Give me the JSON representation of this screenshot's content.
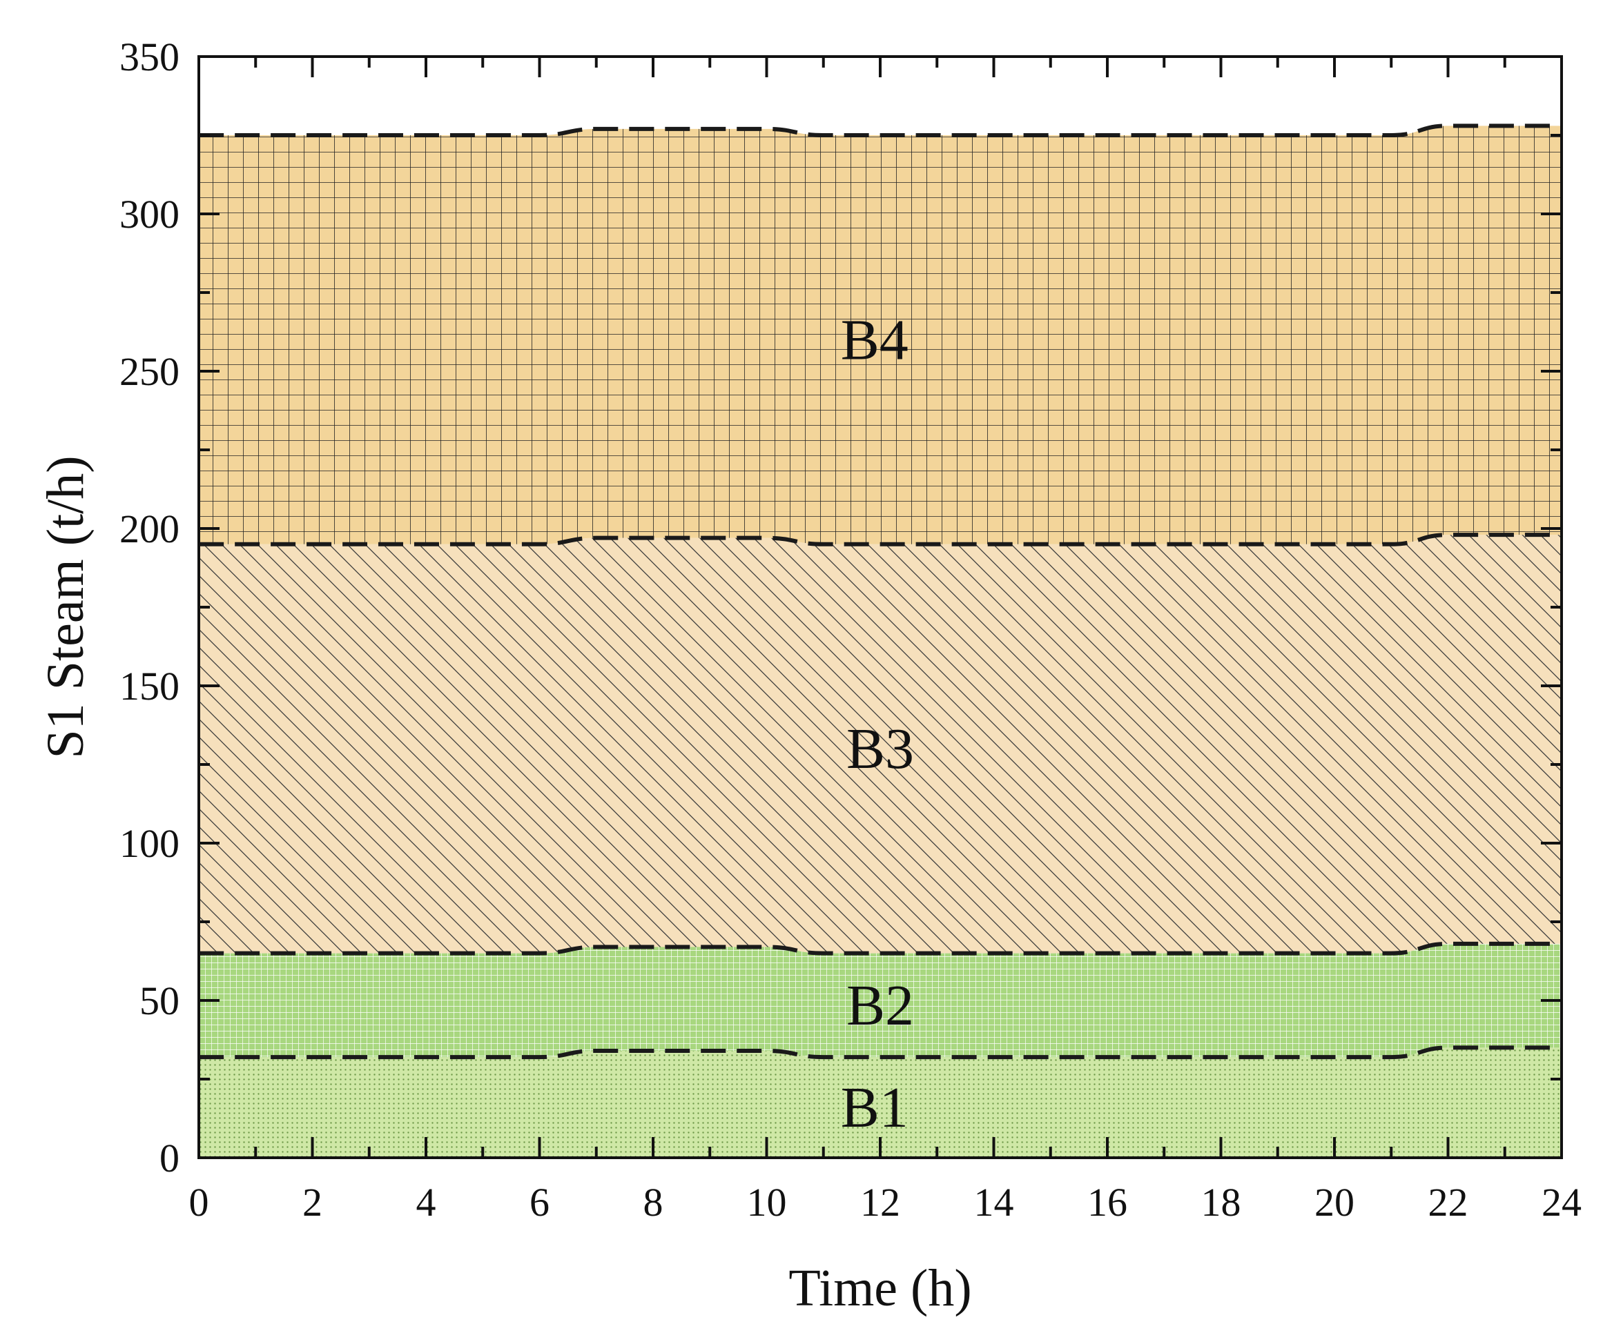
{
  "chart_data": {
    "type": "area",
    "stacked": true,
    "title": "",
    "xlabel": "Time (h)",
    "ylabel": "S1 Steam (t/h)",
    "xlim": [
      0,
      24
    ],
    "ylim": [
      0,
      350
    ],
    "xticks": [
      0,
      2,
      4,
      6,
      8,
      10,
      12,
      14,
      16,
      18,
      20,
      22,
      24
    ],
    "yticks": [
      0,
      50,
      100,
      150,
      200,
      250,
      300,
      350
    ],
    "x": [
      0,
      6,
      7,
      10,
      11,
      21,
      22,
      24
    ],
    "series": [
      {
        "name": "B1",
        "values": [
          32,
          32,
          34,
          34,
          32,
          32,
          35,
          35
        ],
        "color": "#cfe8a6",
        "pattern": "dots"
      },
      {
        "name": "B2",
        "values": [
          33,
          33,
          33,
          33,
          33,
          33,
          33,
          33
        ],
        "color": "#a8d77f",
        "pattern": "fine-grid"
      },
      {
        "name": "B3",
        "values": [
          130,
          130,
          130,
          130,
          130,
          130,
          130,
          130
        ],
        "color": "#f6e0bc",
        "pattern": "diagonal"
      },
      {
        "name": "B4",
        "values": [
          130,
          130,
          130,
          130,
          130,
          130,
          130,
          130
        ],
        "color": "#f3d59a",
        "pattern": "coarse-grid"
      }
    ],
    "labels": [
      {
        "text": "B1",
        "series": "B1"
      },
      {
        "text": "B2",
        "series": "B2"
      },
      {
        "text": "B3",
        "series": "B3"
      },
      {
        "text": "B4",
        "series": "B4"
      }
    ],
    "grid": false,
    "legend": "none"
  }
}
